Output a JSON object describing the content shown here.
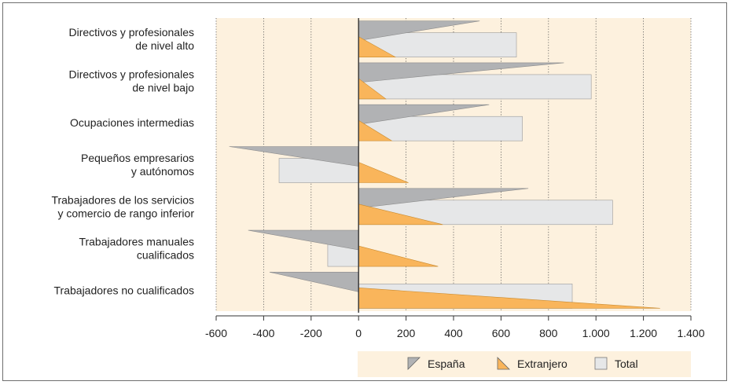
{
  "chart_data": {
    "type": "bar",
    "orientation": "horizontal",
    "categories": [
      [
        "Directivos y profesionales",
        "de nivel alto"
      ],
      [
        "Directivos y profesionales",
        "de nivel bajo"
      ],
      [
        "Ocupaciones intermedias"
      ],
      [
        "Pequeños empresarios",
        "y autónomos"
      ],
      [
        "Trabajadores de los servicios",
        "y comercio de rango inferior"
      ],
      [
        "Trabajadores manuales",
        "cualificados"
      ],
      [
        "Trabajadores no cualificados"
      ]
    ],
    "series": [
      {
        "name": "España",
        "values": [
          510,
          865,
          550,
          -545,
          715,
          -465,
          -375
        ],
        "color": "#b1b2b4",
        "marker": "triangle-grey"
      },
      {
        "name": "Extranjero",
        "values": [
          155,
          115,
          140,
          210,
          355,
          335,
          1270
        ],
        "color": "#f9b55b",
        "marker": "triangle-orange"
      },
      {
        "name": "Total",
        "values": [
          665,
          980,
          690,
          -335,
          1070,
          -130,
          900
        ],
        "color": "#e6e7e8",
        "marker": "square"
      }
    ],
    "xlim": [
      -600,
      1400
    ],
    "xticks": [
      -600,
      -400,
      -200,
      0,
      200,
      400,
      600,
      800,
      1000,
      1200,
      1400
    ],
    "xtick_labels": [
      "-600",
      "-400",
      "-200",
      "0",
      "200",
      "400",
      "600",
      "800",
      "1.000",
      "1.200",
      "1.400"
    ],
    "grid": true,
    "legend_position": "bottom",
    "colors": {
      "plot_background": "#fdf1de",
      "grid": "#555555",
      "axis": "#333333"
    }
  }
}
